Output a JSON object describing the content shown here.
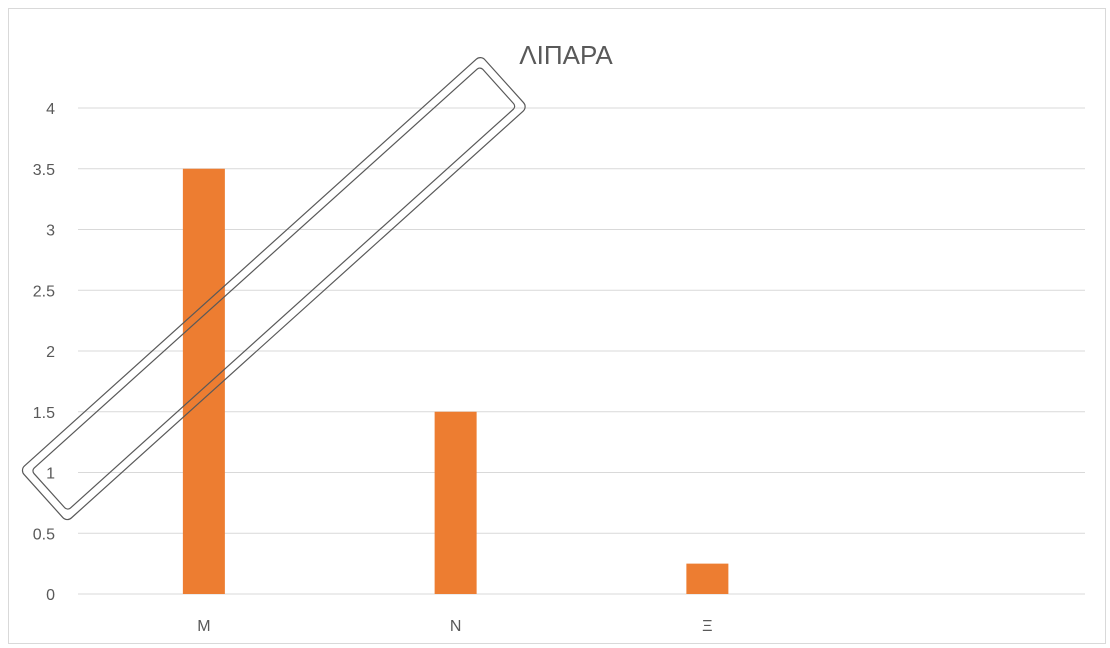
{
  "chart_data": {
    "type": "bar",
    "title": "ΛΙΠΑΡΑ",
    "categories": [
      "Μ",
      "Ν",
      "Ξ",
      ""
    ],
    "series": [
      {
        "values": [
          3.5,
          1.5,
          0.25,
          0
        ],
        "color": "#ED7D31"
      }
    ],
    "y_ticks": [
      "0",
      "0.5",
      "1",
      "1.5",
      "2",
      "2.5",
      "3",
      "3.5",
      "4"
    ],
    "ylim": [
      0,
      4
    ],
    "grid": true,
    "legend": "none"
  },
  "colors": {
    "bar": "#ED7D31",
    "grid": "#d9d9d9",
    "text": "#595959"
  }
}
